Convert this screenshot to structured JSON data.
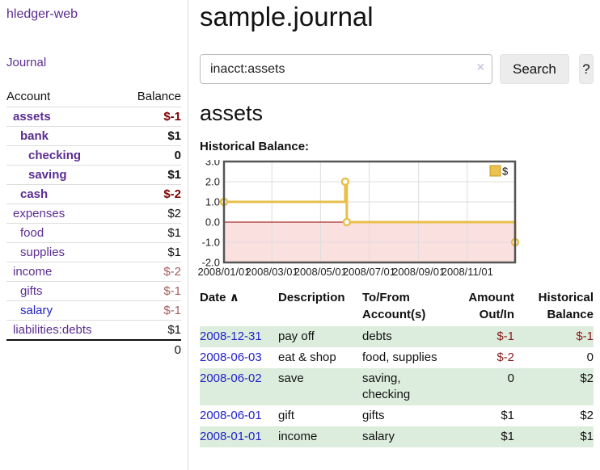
{
  "app": {
    "brand": "hledger-web",
    "title": "sample.journal"
  },
  "sidebar": {
    "journal_link": "Journal",
    "accounts": {
      "header": {
        "account": "Account",
        "balance": "Balance"
      },
      "rows": [
        {
          "name": "assets",
          "balance": "$-1"
        },
        {
          "name": "bank",
          "balance": "$1"
        },
        {
          "name": "checking",
          "balance": "0"
        },
        {
          "name": "saving",
          "balance": "$1"
        },
        {
          "name": "cash",
          "balance": "$-2"
        },
        {
          "name": "expenses",
          "balance": "$2"
        },
        {
          "name": "food",
          "balance": "$1"
        },
        {
          "name": "supplies",
          "balance": "$1"
        },
        {
          "name": "income",
          "balance": "$-2"
        },
        {
          "name": "gifts",
          "balance": "$-1"
        },
        {
          "name": "salary",
          "balance": "$-1"
        },
        {
          "name": "liabilities:debts",
          "balance": "$1"
        }
      ],
      "total": "0"
    }
  },
  "search": {
    "query": "inacct:assets",
    "clear_icon": "×",
    "search_button": "Search",
    "help_button": "?"
  },
  "account_page": {
    "heading": "assets",
    "chart_title": "Historical Balance:"
  },
  "chart_data": {
    "type": "line",
    "step": true,
    "title": "Historical Balance",
    "legend": [
      {
        "label": "$",
        "color": "#eac24e"
      }
    ],
    "legend_position": "top-right",
    "grid": true,
    "x_range_days": 365,
    "x_ticks": [
      {
        "label": "2008/01/01",
        "day": 0
      },
      {
        "label": "2008/03/01",
        "day": 60
      },
      {
        "label": "2008/05/01",
        "day": 121
      },
      {
        "label": "2008/07/01",
        "day": 182
      },
      {
        "label": "2008/09/01",
        "day": 244
      },
      {
        "label": "2008/11/01",
        "day": 305
      }
    ],
    "y_ticks": [
      "3.0",
      "2.0",
      "1.0",
      "0.0",
      "-1.0",
      "-2.0"
    ],
    "ylim": [
      -2,
      3
    ],
    "series": [
      {
        "name": "$",
        "points": [
          {
            "date": "2008-01-01",
            "day": 0,
            "value": 1
          },
          {
            "date": "2008-06-01",
            "day": 152,
            "value": 2
          },
          {
            "date": "2008-06-03",
            "day": 154,
            "value": 0
          },
          {
            "date": "2008-12-31",
            "day": 365,
            "value": -1
          }
        ]
      }
    ],
    "colors": {
      "line": "#e7c04c",
      "marker_fill": "#ffffff",
      "zero_line": "#990000",
      "negative_fill": "#fbe0e0",
      "grid": "#dddddd",
      "border": "#555555",
      "tick_text": "#222222"
    }
  },
  "register": {
    "headers": {
      "date": "Date",
      "sort_icon": "∧",
      "description": "Description",
      "tofrom_line1": "To/From",
      "tofrom_line2": "Account(s)",
      "amount_line1": "Amount",
      "amount_line2": "Out/In",
      "balance_line1": "Historical",
      "balance_line2": "Balance"
    },
    "rows": [
      {
        "date": "2008-12-31",
        "description": "pay off",
        "accounts": "debts",
        "amount": "$-1",
        "balance": "$-1"
      },
      {
        "date": "2008-06-03",
        "description": "eat & shop",
        "accounts": "food, supplies",
        "amount": "$-2",
        "balance": "0"
      },
      {
        "date": "2008-06-02",
        "description": "save",
        "accounts": "saving, checking",
        "amount": "0",
        "balance": "$2"
      },
      {
        "date": "2008-06-01",
        "description": "gift",
        "accounts": "gifts",
        "amount": "$1",
        "balance": "$2"
      },
      {
        "date": "2008-01-01",
        "description": "income",
        "accounts": "salary",
        "amount": "$1",
        "balance": "$1"
      }
    ]
  },
  "colors": {
    "link_purple": "#5b2d91",
    "link_blue": "#2222cc",
    "negative_strong": "#7f0000",
    "negative_soft": "#a85c5c",
    "row_green": "#ddeddd"
  }
}
